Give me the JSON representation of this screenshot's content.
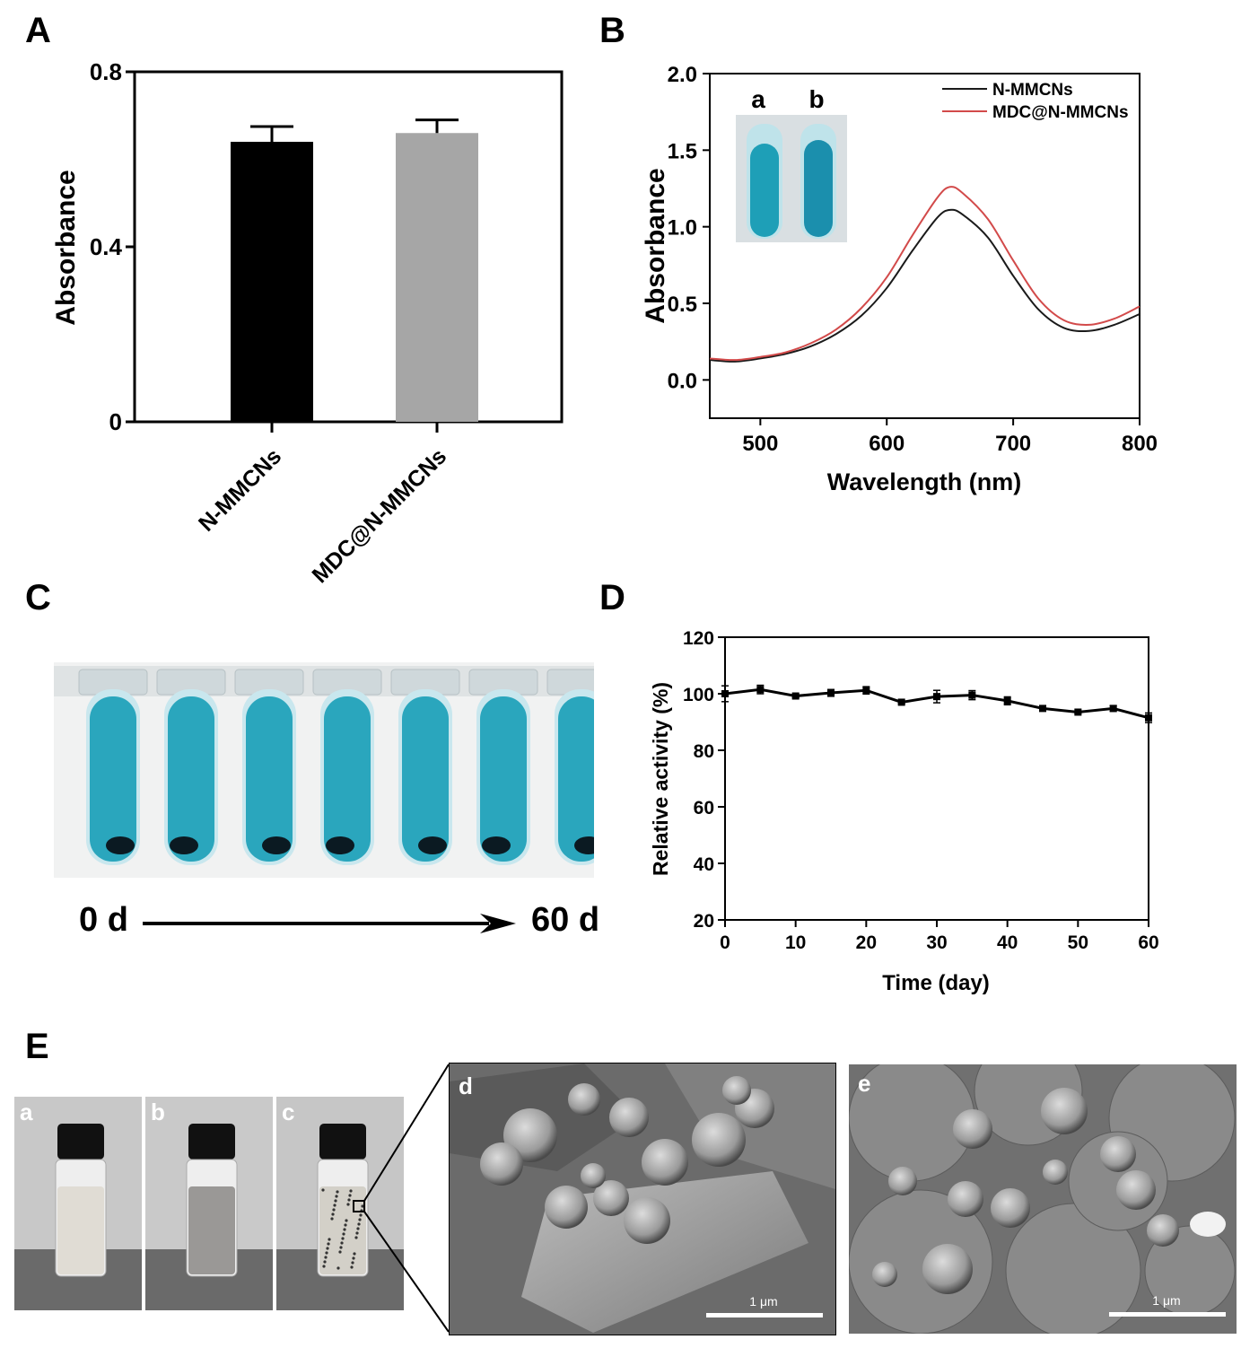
{
  "panels": {
    "A": "A",
    "B": "B",
    "C": "C",
    "D": "D",
    "E": "E"
  },
  "colors": {
    "black_bar": "#000000",
    "gray_bar": "#a6a6a6",
    "red_line": "#d24a4a",
    "black_line": "#1a1a1a",
    "blue_liquid": "#2aa6bd"
  },
  "panelC": {
    "start_label": "0 d",
    "end_label": "60 d"
  },
  "panelE": {
    "sub_labels": [
      "a",
      "b",
      "c",
      "d",
      "e"
    ],
    "scale_bar_d": "1 μm",
    "scale_bar_e": "1 μm"
  },
  "chart_data": [
    {
      "id": "A",
      "type": "bar",
      "title": "",
      "xlabel": "",
      "ylabel": "Absorbance",
      "categories": [
        "N-MMCNs",
        "MDC@N-MMCNs"
      ],
      "values": [
        0.64,
        0.66
      ],
      "errors": [
        0.035,
        0.03
      ],
      "ylim": [
        0,
        0.8
      ],
      "yticks": [
        "0",
        "0.4",
        "0.8"
      ],
      "grid": false
    },
    {
      "id": "B",
      "type": "line",
      "title": "",
      "xlabel": "Wavelength (nm)",
      "ylabel": "Absorbance",
      "xlim": [
        460,
        800
      ],
      "ylim": [
        -0.25,
        2.0
      ],
      "xticks": [
        "500",
        "600",
        "700",
        "800"
      ],
      "yticks": [
        "0.0",
        "0.5",
        "1.0",
        "1.5",
        "2.0"
      ],
      "legend_position": "top-right",
      "inset_labels": [
        "a",
        "b"
      ],
      "x": [
        460,
        480,
        500,
        520,
        540,
        560,
        580,
        600,
        620,
        640,
        650,
        660,
        680,
        700,
        720,
        740,
        760,
        780,
        800
      ],
      "series": [
        {
          "name": "N-MMCNs",
          "values": [
            0.13,
            0.12,
            0.14,
            0.17,
            0.22,
            0.3,
            0.42,
            0.6,
            0.84,
            1.06,
            1.11,
            1.08,
            0.93,
            0.68,
            0.46,
            0.34,
            0.32,
            0.36,
            0.43
          ]
        },
        {
          "name": "MDC@N-MMCNs",
          "values": [
            0.14,
            0.13,
            0.15,
            0.18,
            0.24,
            0.33,
            0.47,
            0.67,
            0.94,
            1.19,
            1.26,
            1.22,
            1.05,
            0.78,
            0.53,
            0.39,
            0.36,
            0.4,
            0.48
          ]
        }
      ],
      "grid": false
    },
    {
      "id": "D",
      "type": "line",
      "title": "",
      "xlabel": "Time (day)",
      "ylabel": "Relative activity (%)",
      "xlim": [
        0,
        60
      ],
      "ylim": [
        20,
        120
      ],
      "xticks": [
        "0",
        "10",
        "20",
        "30",
        "40",
        "50",
        "60"
      ],
      "yticks": [
        "20",
        "40",
        "60",
        "80",
        "100",
        "120"
      ],
      "x": [
        0,
        5,
        10,
        15,
        20,
        25,
        30,
        35,
        40,
        45,
        50,
        55,
        60
      ],
      "values": [
        100,
        101.5,
        99.2,
        100.3,
        101.2,
        97,
        99,
        99.5,
        97.5,
        94.8,
        93.5,
        94.8,
        91.5
      ],
      "errors": [
        2.8,
        1.5,
        0.6,
        1.2,
        1.3,
        0.5,
        2.2,
        1.6,
        1.4,
        0.6,
        0.4,
        1.0,
        1.7
      ],
      "grid": false
    }
  ]
}
